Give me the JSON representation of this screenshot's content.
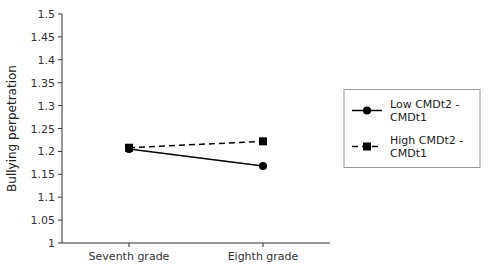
{
  "chart_data": {
    "type": "line",
    "categories": [
      "Seventh grade",
      "Eighth grade"
    ],
    "series": [
      {
        "name": "Low CMDt2 -\nCMDt1",
        "color": "#000000",
        "marker": "circle",
        "line_style": "solid",
        "values": [
          1.205,
          1.168
        ]
      },
      {
        "name": "High CMDt2 -\nCMDt1",
        "color": "#000000",
        "marker": "square",
        "line_style": "dashed",
        "values": [
          1.208,
          1.222
        ]
      }
    ],
    "y_label": "Bullying perpetration",
    "ylim": [
      1,
      1.5
    ],
    "yticks": [
      1,
      1.05,
      1.1,
      1.15,
      1.2,
      1.25,
      1.3,
      1.35,
      1.4,
      1.45,
      1.5
    ],
    "grid": false,
    "legend": "right"
  }
}
